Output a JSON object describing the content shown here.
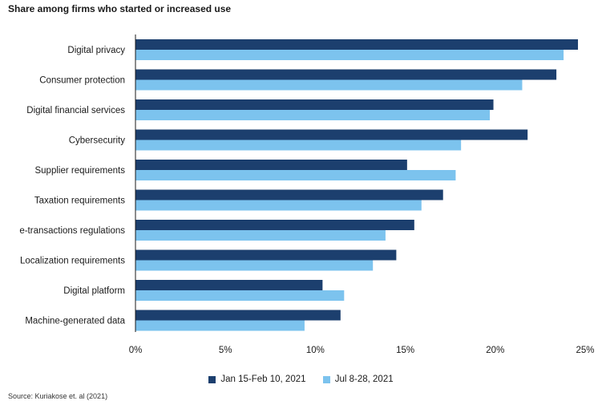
{
  "chart_data": {
    "type": "bar",
    "orientation": "horizontal",
    "title": "Share among firms who started or increased use",
    "categories": [
      "Digital privacy",
      "Consumer protection",
      "Digital financial services",
      "Cybersecurity",
      "Supplier requirements",
      "Taxation requirements",
      "e-transactions regulations",
      "Localization requirements",
      "Digital platform",
      "Machine-generated data"
    ],
    "series": [
      {
        "name": "Jan 15-Feb 10, 2021",
        "color": "#1c3f6e",
        "values": [
          24.6,
          23.4,
          19.9,
          21.8,
          15.1,
          17.1,
          15.5,
          14.5,
          10.4,
          11.4
        ]
      },
      {
        "name": "Jul 8-28, 2021",
        "color": "#7cc3ee",
        "values": [
          23.8,
          21.5,
          19.7,
          18.1,
          17.8,
          15.9,
          13.9,
          13.2,
          11.6,
          9.4
        ]
      }
    ],
    "xlim": [
      0,
      25
    ],
    "xticks": [
      "0%",
      "5%",
      "10%",
      "15%",
      "20%",
      "25%"
    ],
    "xtick_values": [
      0,
      5,
      10,
      15,
      20,
      25
    ],
    "grid": false,
    "legend_position": "bottom-center"
  },
  "source": "Source: Kuriakose et. al (2021)"
}
